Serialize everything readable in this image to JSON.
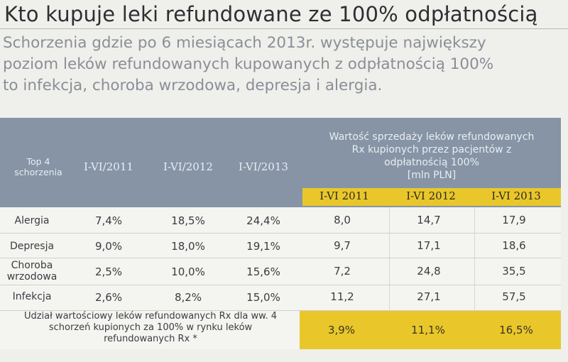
{
  "title": "Kto kupuje leki refundowane ze 100% odpłatnością",
  "subtitle_lines": [
    "Schorzenia gdzie po 6 miesiącach 2013r. występuje największy",
    "poziom leków refundowanych kupowanych z odpłatnością 100%",
    "to infekcja, choroba wrzodowa, depresja i alergia."
  ],
  "table": {
    "top4_header": [
      "Top 4",
      "schorzenia"
    ],
    "period_headers": [
      "I-VI/2011",
      "I-VI/2012",
      "I-VI/2013"
    ],
    "group_header_lines": [
      "Wartość sprzedaży leków refundowanych",
      "Rx kupionych przez pacjentów z",
      "odpłatnością 100%"
    ],
    "unit": "[mln PLN]",
    "year_headers": [
      "I-VI 2011",
      "I-VI 2012",
      "I-VI 2013"
    ],
    "rows": [
      {
        "label": [
          "Alergia"
        ],
        "shares": [
          "7,4%",
          "18,5%",
          "24,4%"
        ],
        "values": [
          "8,0",
          "14,7",
          "17,9"
        ]
      },
      {
        "label": [
          "Depresja"
        ],
        "shares": [
          "9,0%",
          "18,0%",
          "19,1%"
        ],
        "values": [
          "9,7",
          "17,1",
          "18,6"
        ]
      },
      {
        "label": [
          "Choroba",
          "wrzodowa"
        ],
        "shares": [
          "2,5%",
          "10,0%",
          "15,6%"
        ],
        "values": [
          "7,2",
          "24,8",
          "35,5"
        ]
      },
      {
        "label": [
          "Infekcja"
        ],
        "shares": [
          "2,6%",
          "8,2%",
          "15,0%"
        ],
        "values": [
          "11,2",
          "27,1",
          "57,5"
        ]
      }
    ],
    "footer_lines": [
      "Udział wartościowy leków refundowanych Rx dla ww. 4",
      "schorzeń kupionych za 100% w rynku leków",
      "refundowanych Rx *"
    ],
    "footer_values": [
      "3,9%",
      "11,1%",
      "16,5%"
    ]
  }
}
